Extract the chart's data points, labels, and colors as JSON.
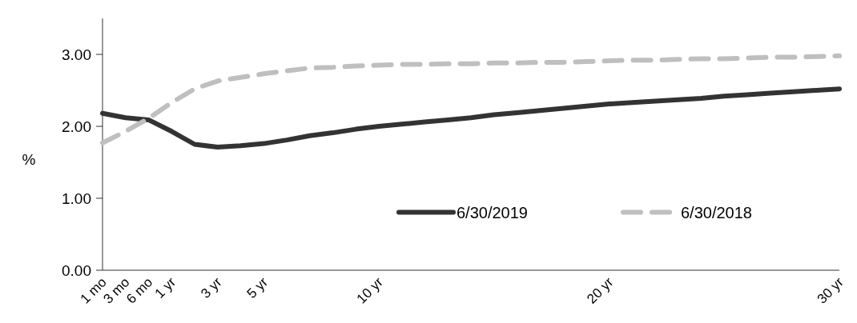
{
  "chart_data": {
    "type": "line",
    "ylabel": "%",
    "categories": [
      "1 mo",
      "3 mo",
      "6 mo",
      "1 yr",
      null,
      "3 yr",
      null,
      "5 yr",
      null,
      null,
      null,
      null,
      "10 yr",
      null,
      null,
      null,
      null,
      null,
      null,
      null,
      null,
      null,
      "20 yr",
      null,
      null,
      null,
      null,
      null,
      null,
      null,
      null,
      null,
      "30 yr"
    ],
    "ylim": [
      0,
      3.5
    ],
    "yticks": [
      {
        "value": 0,
        "label": "0.00"
      },
      {
        "value": 1,
        "label": "1.00"
      },
      {
        "value": 2,
        "label": "2.00"
      },
      {
        "value": 3,
        "label": "3.00"
      }
    ],
    "legend": "bottom right",
    "marker": "none",
    "series": [
      {
        "name": "6/30/2019",
        "color": "#333333",
        "line_style": "solid",
        "values": [
          2.18,
          2.12,
          2.09,
          1.93,
          1.75,
          1.71,
          1.73,
          1.76,
          1.81,
          1.87,
          1.91,
          1.96,
          2.0,
          2.03,
          2.06,
          2.09,
          2.12,
          2.16,
          2.19,
          2.22,
          2.25,
          2.28,
          2.31,
          2.33,
          2.35,
          2.37,
          2.39,
          2.42,
          2.44,
          2.46,
          2.48,
          2.5,
          2.52
        ]
      },
      {
        "name": "6/30/2018",
        "color": "#bfbfbf",
        "line_style": "dashed",
        "values": [
          1.77,
          1.93,
          2.11,
          2.33,
          2.52,
          2.63,
          2.68,
          2.73,
          2.77,
          2.81,
          2.82,
          2.84,
          2.85,
          2.86,
          2.86,
          2.87,
          2.87,
          2.88,
          2.88,
          2.89,
          2.89,
          2.9,
          2.91,
          2.92,
          2.92,
          2.93,
          2.94,
          2.94,
          2.95,
          2.96,
          2.96,
          2.97,
          2.98
        ]
      }
    ]
  }
}
